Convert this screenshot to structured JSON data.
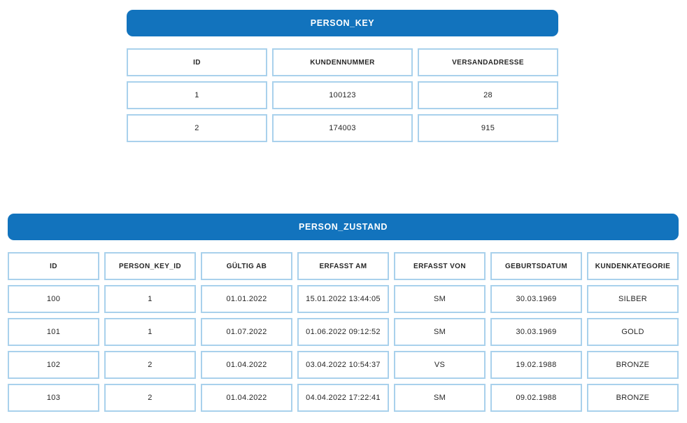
{
  "colors": {
    "accent_blue": "#1273BD",
    "cell_border_blue": "#A9D1EC",
    "title_text": "#FFFFFF",
    "cell_text": "#262626",
    "background": "#FFFFFF"
  },
  "tables": [
    {
      "title": "PERSON_KEY",
      "columns": [
        "ID",
        "KUNDENNUMMER",
        "VERSANDADRESSE"
      ],
      "rows": [
        [
          "1",
          "100123",
          "28"
        ],
        [
          "2",
          "174003",
          "915"
        ]
      ]
    },
    {
      "title": "PERSON_ZUSTAND",
      "columns": [
        "ID",
        "PERSON_KEY_ID",
        "GÜLTIG AB",
        "ERFASST AM",
        "ERFASST VON",
        "GEBURTSDATUM",
        "KUNDENKATEGORIE"
      ],
      "rows": [
        [
          "100",
          "1",
          "01.01.2022",
          "15.01.2022 13:44:05",
          "SM",
          "30.03.1969",
          "SILBER"
        ],
        [
          "101",
          "1",
          "01.07.2022",
          "01.06.2022 09:12:52",
          "SM",
          "30.03.1969",
          "GOLD"
        ],
        [
          "102",
          "2",
          "01.04.2022",
          "03.04.2022 10:54:37",
          "VS",
          "19.02.1988",
          "BRONZE"
        ],
        [
          "103",
          "2",
          "01.04.2022",
          "04.04.2022 17:22:41",
          "SM",
          "09.02.1988",
          "BRONZE"
        ]
      ]
    }
  ]
}
